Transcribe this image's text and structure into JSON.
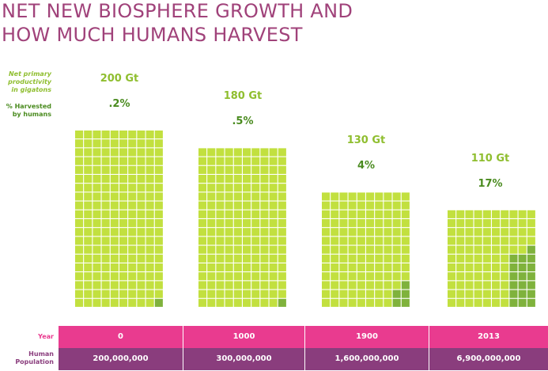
{
  "title": {
    "line1": "NET NEW BIOSPHERE GROWTH AND",
    "line2": "HOW MUCH HUMANS HARVEST"
  },
  "labels": {
    "npp_line1": "Net primary",
    "npp_line2": "productivity",
    "npp_line3": "in gigatons",
    "harvest_line1": "% Harvested",
    "harvest_line2": "by humans",
    "year_row": "Year",
    "pop_row_line1": "Human",
    "pop_row_line2": "Population"
  },
  "colors": {
    "title": "#a0427a",
    "label_green": "#8fbe2f",
    "harvest_label": "#4a8b1f",
    "light_square": "#c2e03f",
    "dark_square": "#7fb23c",
    "grid_line": "#ffffff",
    "year_band": "#e93b8f",
    "pop_band": "#8a3d7d",
    "row_label_pink": "#e93b8f",
    "row_label_purple": "#8a3d7d"
  },
  "chart_data": {
    "type": "waffle",
    "categories": [
      "0",
      "1000",
      "1900",
      "2013"
    ],
    "series": [
      {
        "name": "Net primary productivity in gigatons",
        "values": [
          200,
          180,
          130,
          110
        ],
        "labels": [
          "200 Gt",
          "180 Gt",
          "130 Gt",
          "110 Gt"
        ]
      },
      {
        "name": "% Harvested by humans",
        "values": [
          0.2,
          0.5,
          4,
          17
        ],
        "labels": [
          ".2%",
          ".5%",
          "4%",
          "17%"
        ]
      }
    ],
    "grid_rows": [
      20,
      18,
      13,
      11
    ],
    "grid_cols": 10,
    "harvested_squares": [
      1,
      1,
      5,
      19
    ],
    "human_population": [
      "200,000,000",
      "300,000,000",
      "1,600,000,000",
      "6,900,000,000"
    ]
  }
}
